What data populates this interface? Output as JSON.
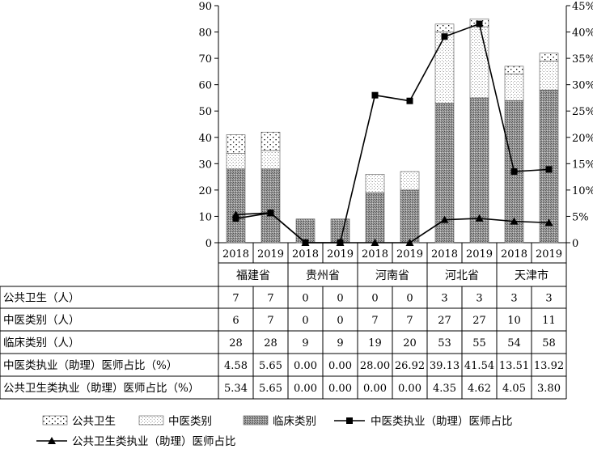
{
  "chart_data": {
    "type": "bar",
    "years": [
      "2018",
      "2019",
      "2018",
      "2019",
      "2018",
      "2019",
      "2018",
      "2019",
      "2018",
      "2019"
    ],
    "groups": [
      "福建省",
      "贵州省",
      "河南省",
      "河北省",
      "天津市"
    ],
    "ylim": [
      0,
      90
    ],
    "yticks": [
      "0",
      "10",
      "20",
      "30",
      "40",
      "50",
      "60",
      "70",
      "80",
      "90"
    ],
    "y2lim": [
      0,
      45
    ],
    "y2ticks": [
      "0",
      "5%",
      "10%",
      "15%",
      "20%",
      "25%",
      "30%",
      "35%",
      "40%",
      "45%"
    ],
    "bar_series": [
      {
        "name": "临床类别",
        "values": [
          28,
          28,
          9,
          9,
          19,
          20,
          53,
          55,
          54,
          58
        ]
      },
      {
        "name": "中医类别",
        "values": [
          6,
          7,
          0,
          0,
          7,
          7,
          27,
          27,
          10,
          11
        ]
      },
      {
        "name": "公共卫生",
        "values": [
          7,
          7,
          0,
          0,
          0,
          0,
          3,
          3,
          3,
          3
        ]
      }
    ],
    "line_series": [
      {
        "name": "中医类执业（助理）医师占比",
        "values": [
          4.58,
          5.65,
          0.0,
          0.0,
          28.0,
          26.92,
          39.13,
          41.54,
          13.51,
          13.92
        ]
      },
      {
        "name": "公共卫生类执业（助理）医师占比",
        "values": [
          5.34,
          5.65,
          0.0,
          0.0,
          0.0,
          0.0,
          4.35,
          4.62,
          4.05,
          3.8
        ]
      }
    ],
    "table": {
      "rows": [
        {
          "label": "公共卫生（人）",
          "cells": [
            "7",
            "7",
            "0",
            "0",
            "0",
            "0",
            "3",
            "3",
            "3",
            "3"
          ]
        },
        {
          "label": "中医类别（人）",
          "cells": [
            "6",
            "7",
            "0",
            "0",
            "7",
            "7",
            "27",
            "27",
            "10",
            "11"
          ]
        },
        {
          "label": "临床类别（人）",
          "cells": [
            "28",
            "28",
            "9",
            "9",
            "19",
            "20",
            "53",
            "55",
            "54",
            "58"
          ]
        },
        {
          "label": "中医类执业（助理）医师占比（%）",
          "cells": [
            "4.58",
            "5.65",
            "0.00",
            "0.00",
            "28.00",
            "26.92",
            "39.13",
            "41.54",
            "13.51",
            "13.92"
          ]
        },
        {
          "label": "公共卫生类执业（助理）医师占比（%）",
          "cells": [
            "5.34",
            "5.65",
            "0.00",
            "0.00",
            "0.00",
            "0.00",
            "4.35",
            "4.62",
            "4.05",
            "3.80"
          ]
        }
      ]
    },
    "legend": [
      "公共卫生",
      "中医类别",
      "临床类别",
      "中医类执业（助理）医师占比",
      "公共卫生类执业（助理）医师占比"
    ],
    "colors": {
      "clinical": "#7f7f7f",
      "tcm": "#f0f0f0",
      "public": "#ffffff",
      "line": "#000000"
    }
  }
}
